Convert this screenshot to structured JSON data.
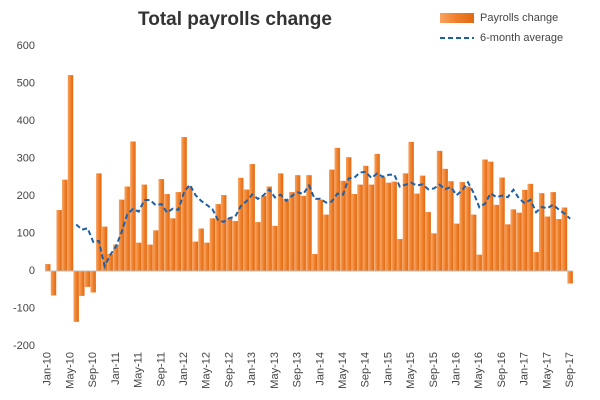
{
  "chart_data": {
    "type": "bar-line",
    "title": "Total payrolls change",
    "categories": [
      "Jan-10",
      null,
      null,
      null,
      "May-10",
      null,
      null,
      null,
      "Sep-10",
      null,
      null,
      null,
      "Jan-11",
      null,
      null,
      null,
      "May-11",
      null,
      null,
      null,
      "Sep-11",
      null,
      null,
      null,
      "Jan-12",
      null,
      null,
      null,
      "May-12",
      null,
      null,
      null,
      "Sep-12",
      null,
      null,
      null,
      "Jan-13",
      null,
      null,
      null,
      "May-13",
      null,
      null,
      null,
      "Sep-13",
      null,
      null,
      null,
      "Jan-14",
      null,
      null,
      null,
      "May-14",
      null,
      null,
      null,
      "Sep-14",
      null,
      null,
      null,
      "Jan-15",
      null,
      null,
      null,
      "May-15",
      null,
      null,
      null,
      "Sep-15",
      null,
      null,
      null,
      "Jan-16",
      null,
      null,
      null,
      "May-16",
      null,
      null,
      null,
      "Sep-16",
      null,
      null,
      null,
      "Jan-17",
      null,
      null,
      null,
      "May-17",
      null,
      null,
      null,
      "Sep-17"
    ],
    "series": [
      {
        "name": "Payrolls change",
        "kind": "bar",
        "color": "#f07f2a",
        "values": [
          18,
          -65,
          162,
          243,
          522,
          -135,
          -66,
          -42,
          -57,
          260,
          118,
          45,
          70,
          190,
          225,
          345,
          75,
          230,
          70,
          108,
          245,
          205,
          140,
          210,
          357,
          225,
          78,
          113,
          75,
          140,
          178,
          202,
          140,
          133,
          248,
          217,
          285,
          130,
          200,
          225,
          120,
          260,
          188,
          210,
          255,
          200,
          255,
          45,
          190,
          150,
          270,
          328,
          240,
          303,
          205,
          230,
          280,
          230,
          312,
          250,
          235,
          238,
          85,
          260,
          344,
          206,
          254,
          157,
          100,
          320,
          272,
          239,
          126,
          237,
          225,
          150,
          43,
          297,
          291,
          176,
          249,
          124,
          164,
          155,
          216,
          232,
          50,
          207,
          145,
          210,
          138,
          169,
          -33
        ]
      },
      {
        "name": "6-month average",
        "kind": "line",
        "color": "#1f5fa6",
        "values": [
          null,
          null,
          null,
          null,
          null,
          124.2,
          110.2,
          114,
          77.5,
          80.3,
          13,
          43,
          65.7,
          104.3,
          151.3,
          165.5,
          158.3,
          189.2,
          189.2,
          175.5,
          178.8,
          155.5,
          166.3,
          163,
          210.8,
          230.3,
          202.5,
          187.2,
          176.3,
          164.7,
          134.8,
          131,
          141.3,
          144.7,
          173.5,
          186.3,
          204.2,
          192.2,
          202.2,
          217.5,
          196.2,
          203.3,
          187.2,
          200.5,
          209.7,
          205.5,
          228,
          192.2,
          192.5,
          182.5,
          185,
          206.3,
          203.8,
          246.8,
          249.3,
          262.7,
          264.3,
          248,
          260,
          251.2,
          256.2,
          257.5,
          225,
          230,
          235.3,
          228,
          231.2,
          217.7,
          220.2,
          230.2,
          218.2,
          223.7,
          202.3,
          215.7,
          236.5,
          208.2,
          170,
          179.7,
          207.2,
          197,
          201,
          196.7,
          216.8,
          193.2,
          180.7,
          190,
          156.8,
          170.7,
          167.5,
          176.7,
          163.7,
          153.2,
          139.3
        ]
      }
    ],
    "ylim": [
      -200,
      600
    ],
    "yticks": [
      -200,
      -100,
      0,
      100,
      200,
      300,
      400,
      500,
      600
    ],
    "grid": false,
    "legend": "top-right"
  }
}
